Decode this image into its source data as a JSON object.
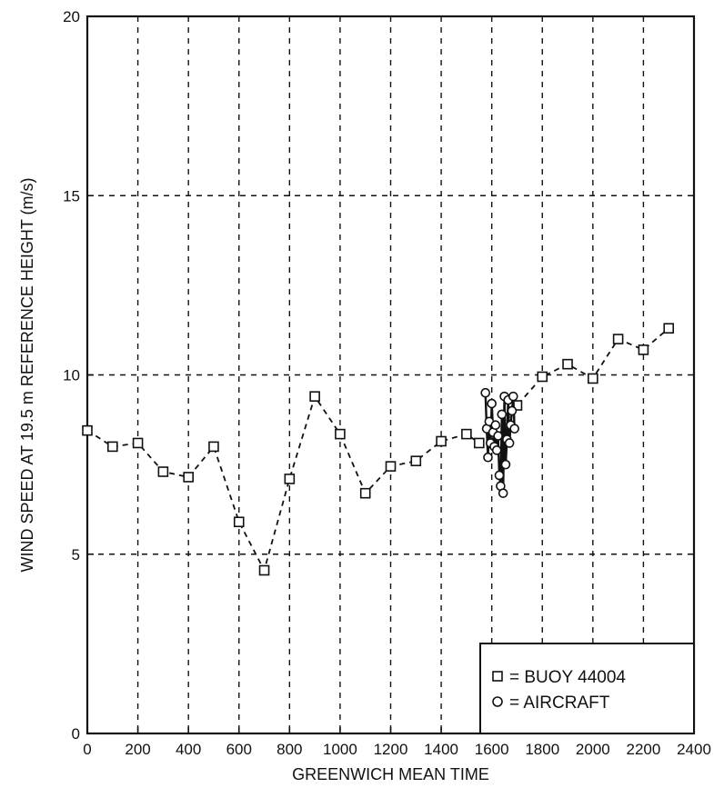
{
  "chart_data": {
    "type": "line",
    "title": "",
    "xlabel": "GREENWICH MEAN TIME",
    "ylabel": "WIND SPEED AT 19.5 m REFERENCE HEIGHT (m/s)",
    "xlim": [
      0,
      2400
    ],
    "ylim": [
      0,
      20
    ],
    "x_ticks": [
      "0",
      "200",
      "400",
      "600",
      "800",
      "1000",
      "1200",
      "1400",
      "1600",
      "1800",
      "2000",
      "2200",
      "2400"
    ],
    "y_ticks": [
      "0",
      "5",
      "10",
      "15",
      "20"
    ],
    "grid": true,
    "legend_position": "bottom-right",
    "series": [
      {
        "name": "= BUOY 44004",
        "marker": "square",
        "line": "dashed",
        "color": "#111111",
        "x": [
          0,
          100,
          200,
          300,
          400,
          500,
          600,
          700,
          800,
          900,
          1000,
          1100,
          1200,
          1300,
          1400,
          1500,
          1550,
          1600,
          1700,
          1800,
          1900,
          2000,
          2100,
          2200,
          2300
        ],
        "y": [
          8.45,
          8.0,
          8.1,
          7.3,
          7.15,
          8.0,
          5.9,
          4.55,
          7.1,
          9.4,
          8.35,
          6.7,
          7.45,
          7.6,
          8.15,
          8.35,
          8.1,
          8.1,
          9.15,
          9.95,
          10.3,
          9.9,
          11.0,
          10.7,
          11.3
        ]
      },
      {
        "name": "= AIRCRAFT",
        "marker": "circle",
        "line": "solid",
        "color": "#111111",
        "x": [
          1575,
          1580,
          1585,
          1590,
          1595,
          1600,
          1605,
          1610,
          1615,
          1620,
          1625,
          1630,
          1635,
          1640,
          1645,
          1650,
          1655,
          1660,
          1665,
          1670,
          1675,
          1680,
          1685,
          1690
        ],
        "y": [
          9.5,
          8.5,
          7.7,
          8.7,
          8.1,
          9.2,
          8.4,
          8.0,
          8.6,
          7.9,
          8.3,
          7.2,
          6.9,
          8.9,
          6.7,
          9.4,
          7.5,
          8.2,
          9.3,
          8.1,
          8.6,
          9.0,
          9.4,
          8.5
        ]
      }
    ]
  }
}
